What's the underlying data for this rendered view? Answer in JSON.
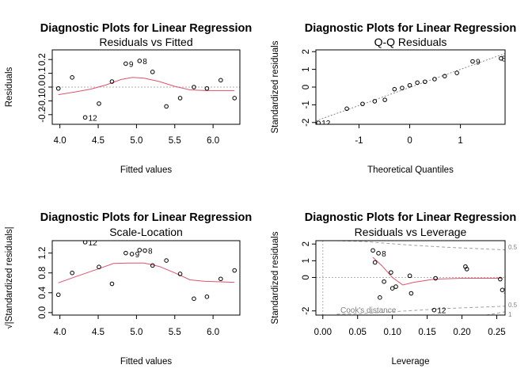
{
  "chart_data": [
    {
      "type": "scatter",
      "title": "Diagnostic Plots for Linear Regression",
      "subtitle": "Residuals vs Fitted",
      "xlabel": "Fitted values",
      "ylabel": "Residuals",
      "xlim": [
        3.9,
        6.35
      ],
      "ylim": [
        -0.27,
        0.27
      ],
      "xticks": [
        "4.0",
        "4.5",
        "5.0",
        "5.5",
        "6.0"
      ],
      "yticks": [
        "-0.2",
        "-0.1",
        "0.0",
        "0.1",
        "0.2"
      ],
      "x": [
        3.98,
        4.16,
        4.33,
        4.51,
        4.68,
        4.86,
        5.04,
        5.21,
        5.39,
        5.57,
        5.75,
        5.92,
        6.1,
        6.28
      ],
      "y": [
        -0.01,
        0.07,
        -0.22,
        -0.12,
        0.04,
        0.17,
        0.19,
        0.11,
        -0.14,
        -0.08,
        0.0,
        -0.01,
        0.05,
        -0.08
      ],
      "labels": [
        {
          "x": 4.33,
          "y": -0.22,
          "text": "12"
        },
        {
          "x": 4.86,
          "y": 0.17,
          "text": "9"
        },
        {
          "x": 5.04,
          "y": 0.19,
          "text": "8"
        }
      ],
      "smooth": {
        "x": [
          3.98,
          4.2,
          4.4,
          4.6,
          4.8,
          4.95,
          5.1,
          5.3,
          5.5,
          5.7,
          5.9,
          6.1,
          6.28
        ],
        "y": [
          -0.055,
          -0.035,
          -0.015,
          0.015,
          0.055,
          0.07,
          0.065,
          0.04,
          0.005,
          -0.02,
          -0.025,
          -0.025,
          -0.025
        ]
      },
      "refline": {
        "y": 0
      }
    },
    {
      "type": "scatter",
      "title": "Diagnostic Plots for Linear Regression",
      "subtitle": "Q-Q Residuals",
      "xlabel": "Theoretical Quantiles",
      "ylabel": "Standardized residuals",
      "xlim": [
        -1.85,
        1.88
      ],
      "ylim": [
        -2.1,
        2.1
      ],
      "xticks": [
        "-1",
        "0",
        "1"
      ],
      "yticks": [
        "-2",
        "-1",
        "0",
        "1",
        "2"
      ],
      "x": [
        -1.8,
        -1.24,
        -0.93,
        -0.69,
        -0.49,
        -0.3,
        -0.15,
        0.0,
        0.15,
        0.3,
        0.49,
        0.69,
        0.93,
        1.24,
        1.8
      ],
      "y": [
        -2.02,
        -1.22,
        -0.95,
        -0.8,
        -0.72,
        -0.12,
        -0.05,
        0.1,
        0.25,
        0.3,
        0.45,
        0.62,
        0.8,
        1.45,
        1.62
      ],
      "labels": [
        {
          "x": -1.8,
          "y": -2.02,
          "text": "12"
        },
        {
          "x": 1.24,
          "y": 1.45,
          "text": "9"
        },
        {
          "x": 1.75,
          "y": 1.62,
          "text": "8"
        }
      ],
      "refline": {
        "slope": 1.02,
        "intercept": -0.02
      }
    },
    {
      "type": "scatter",
      "title": "Diagnostic Plots for Linear Regression",
      "subtitle": "Scale-Location",
      "xlabel": "Fitted values",
      "ylabel": "√|Standardized residuals|",
      "xlim": [
        3.9,
        6.35
      ],
      "ylim": [
        -0.05,
        1.45
      ],
      "xticks": [
        "4.0",
        "4.5",
        "5.0",
        "5.5",
        "6.0"
      ],
      "yticks": [
        "0.0",
        "0.4",
        "0.8",
        "1.2"
      ],
      "x": [
        3.98,
        4.16,
        4.33,
        4.51,
        4.68,
        4.86,
        4.94,
        5.04,
        5.11,
        5.21,
        5.39,
        5.57,
        5.75,
        5.92,
        6.1,
        6.28
      ],
      "y": [
        0.36,
        0.8,
        1.42,
        0.92,
        0.58,
        1.2,
        1.18,
        1.26,
        1.25,
        0.95,
        1.05,
        0.78,
        0.28,
        0.32,
        0.68,
        0.85
      ],
      "labels": [
        {
          "x": 4.33,
          "y": 1.42,
          "text": "12"
        },
        {
          "x": 4.94,
          "y": 1.18,
          "text": "9"
        },
        {
          "x": 5.11,
          "y": 1.25,
          "text": "8"
        }
      ],
      "smooth": {
        "x": [
          3.98,
          4.2,
          4.5,
          4.7,
          4.9,
          5.1,
          5.3,
          5.5,
          5.7,
          5.9,
          6.1,
          6.28
        ],
        "y": [
          0.6,
          0.72,
          0.88,
          0.99,
          1.0,
          1.0,
          0.93,
          0.8,
          0.66,
          0.63,
          0.62,
          0.61
        ]
      }
    },
    {
      "type": "scatter",
      "title": "Diagnostic Plots for Linear Regression",
      "subtitle": "Residuals vs Leverage",
      "xlabel": "Leverage",
      "ylabel": "Standardized residuals",
      "xlim": [
        -0.01,
        0.262
      ],
      "ylim": [
        -2.25,
        2.2
      ],
      "xticks": [
        "0.00",
        "0.05",
        "0.10",
        "0.15",
        "0.20",
        "0.25"
      ],
      "yticks": [
        "-2",
        "0",
        "1",
        "2"
      ],
      "ytick_values": [
        -2,
        0,
        1,
        2
      ],
      "x": [
        0.072,
        0.075,
        0.08,
        0.082,
        0.088,
        0.098,
        0.1,
        0.105,
        0.125,
        0.127,
        0.16,
        0.162,
        0.205,
        0.207,
        0.255,
        0.258
      ],
      "y": [
        1.62,
        0.9,
        1.45,
        -1.2,
        -0.25,
        0.3,
        -0.65,
        -0.55,
        0.1,
        -0.95,
        -1.95,
        -0.05,
        0.65,
        0.5,
        -0.1,
        -0.75
      ],
      "labels": [
        {
          "x": 0.08,
          "y": 1.45,
          "text": "8"
        },
        {
          "x": 0.16,
          "y": -1.95,
          "text": "12"
        },
        {
          "x": 0.255,
          "y": -0.75,
          "text": "1"
        }
      ],
      "smooth": {
        "x": [
          0.072,
          0.085,
          0.1,
          0.115,
          0.13,
          0.16,
          0.2,
          0.258
        ],
        "y": [
          1.2,
          0.7,
          0.0,
          -0.45,
          -0.3,
          -0.1,
          -0.05,
          -0.05
        ]
      },
      "refline": {
        "y": 0
      },
      "cook_label": "Cook's distance",
      "cook_ticks": [
        "0.5",
        "0.5",
        "1"
      ]
    }
  ]
}
